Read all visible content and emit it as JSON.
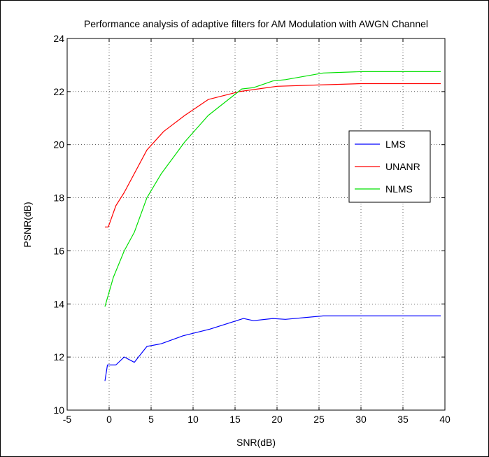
{
  "chart_data": {
    "type": "line",
    "title": "Performance analysis of adaptive filters for AM Modulation with AWGN Channel",
    "xlabel": "SNR(dB)",
    "ylabel": "PSNR(dB)",
    "xlim": [
      -5,
      40
    ],
    "ylim": [
      10,
      24
    ],
    "xticks": [
      -5,
      0,
      5,
      10,
      15,
      20,
      25,
      30,
      35,
      40
    ],
    "yticks": [
      10,
      12,
      14,
      16,
      18,
      20,
      22,
      24
    ],
    "xtick_labels": [
      "-5",
      "0",
      "5",
      "10",
      "15",
      "20",
      "25",
      "30",
      "35",
      "40"
    ],
    "ytick_labels": [
      "10",
      "12",
      "14",
      "16",
      "18",
      "20",
      "22",
      "24"
    ],
    "grid": true,
    "legend_position": "right",
    "series": [
      {
        "name": "LMS",
        "color": "#0000ff",
        "points": [
          [
            -0.5,
            11.1
          ],
          [
            -0.2,
            11.7
          ],
          [
            0.8,
            11.7
          ],
          [
            1.8,
            12.0
          ],
          [
            3.0,
            11.8
          ],
          [
            4.5,
            12.4
          ],
          [
            6.2,
            12.5
          ],
          [
            8.8,
            12.8
          ],
          [
            12,
            13.05
          ],
          [
            16,
            13.45
          ],
          [
            17.2,
            13.37
          ],
          [
            19.5,
            13.45
          ],
          [
            21,
            13.42
          ],
          [
            25.5,
            13.55
          ],
          [
            30,
            13.55
          ],
          [
            39.5,
            13.55
          ]
        ]
      },
      {
        "name": "UNANR",
        "color": "#ff0000",
        "points": [
          [
            -0.5,
            16.9
          ],
          [
            -0.1,
            16.9
          ],
          [
            0.8,
            17.7
          ],
          [
            1.8,
            18.2
          ],
          [
            4.5,
            19.8
          ],
          [
            6.5,
            20.5
          ],
          [
            9,
            21.1
          ],
          [
            11.8,
            21.7
          ],
          [
            15.5,
            22.0
          ],
          [
            20,
            22.2
          ],
          [
            25,
            22.25
          ],
          [
            30,
            22.3
          ],
          [
            39.5,
            22.3
          ]
        ]
      },
      {
        "name": "NLMS",
        "color": "#00e000",
        "points": [
          [
            -0.5,
            13.9
          ],
          [
            0.5,
            15.0
          ],
          [
            1.8,
            16.0
          ],
          [
            3.0,
            16.7
          ],
          [
            4.5,
            18.0
          ],
          [
            6.2,
            18.9
          ],
          [
            9,
            20.1
          ],
          [
            11.8,
            21.1
          ],
          [
            15.8,
            22.1
          ],
          [
            17.2,
            22.15
          ],
          [
            19.5,
            22.4
          ],
          [
            21,
            22.45
          ],
          [
            25.5,
            22.7
          ],
          [
            30,
            22.75
          ],
          [
            39.5,
            22.75
          ]
        ]
      }
    ]
  }
}
